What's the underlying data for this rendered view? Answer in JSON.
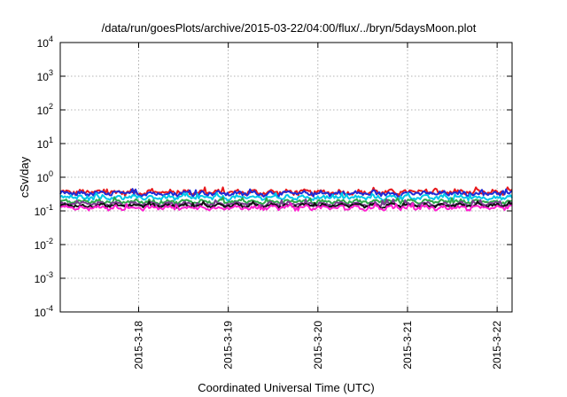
{
  "chart_data": {
    "type": "line",
    "title": "/data/run/goesPlots/archive/2015-03-22/04:00/flux/../bryn/5daysMoon.plot",
    "xlabel": "Coordinated Universal Time (UTC)",
    "ylabel": "cSv/day",
    "yscale": "log",
    "ylim": [
      0.0001,
      10000
    ],
    "y_ticks": [
      {
        "value": 0.0001,
        "base": "10",
        "exp": "-4"
      },
      {
        "value": 0.001,
        "base": "10",
        "exp": "-3"
      },
      {
        "value": 0.01,
        "base": "10",
        "exp": "-2"
      },
      {
        "value": 0.1,
        "base": "10",
        "exp": "-1"
      },
      {
        "value": 1,
        "base": "10",
        "exp": "0"
      },
      {
        "value": 10,
        "base": "10",
        "exp": "1"
      },
      {
        "value": 100,
        "base": "10",
        "exp": "2"
      },
      {
        "value": 1000,
        "base": "10",
        "exp": "3"
      },
      {
        "value": 10000,
        "base": "10",
        "exp": "4"
      }
    ],
    "xlim": [
      "2015-03-17T03:00",
      "2015-03-22T04:00"
    ],
    "x_ticks": [
      "2015-3-18",
      "2015-3-19",
      "2015-3-20",
      "2015-3-21",
      "2015-3-22"
    ],
    "grid": true,
    "series": [
      {
        "color": "#e8191c",
        "level": 0.36,
        "noise": 0.15,
        "x": [
          "2015-03-17T03:00",
          "2015-03-22T04:00"
        ],
        "y_range": [
          0.26,
          0.5
        ]
      },
      {
        "color": "#1f2bd6",
        "level": 0.33,
        "noise": 0.13,
        "x": [
          "2015-03-17T03:00",
          "2015-03-22T04:00"
        ],
        "y_range": [
          0.24,
          0.45
        ]
      },
      {
        "color": "#00c8e8",
        "level": 0.25,
        "noise": 0.12,
        "x": [
          "2015-03-17T03:00",
          "2015-03-22T04:00"
        ],
        "y_range": [
          0.18,
          0.34
        ]
      },
      {
        "color": "#2ea84a",
        "level": 0.19,
        "noise": 0.1,
        "x": [
          "2015-03-17T03:00",
          "2015-03-22T04:00"
        ],
        "y_range": [
          0.15,
          0.25
        ]
      },
      {
        "color": "#7a3b8f",
        "level": 0.16,
        "noise": 0.1,
        "x": [
          "2015-03-17T03:00",
          "2015-03-22T04:00"
        ],
        "y_range": [
          0.12,
          0.22
        ]
      },
      {
        "color": "#111111",
        "level": 0.145,
        "noise": 0.09,
        "x": [
          "2015-03-17T03:00",
          "2015-03-22T04:00"
        ],
        "y_range": [
          0.11,
          0.19
        ]
      },
      {
        "color": "#ff1fd0",
        "level": 0.125,
        "noise": 0.12,
        "x": [
          "2015-03-17T03:00",
          "2015-03-22T04:00"
        ],
        "y_range": [
          0.07,
          0.17
        ]
      }
    ]
  }
}
